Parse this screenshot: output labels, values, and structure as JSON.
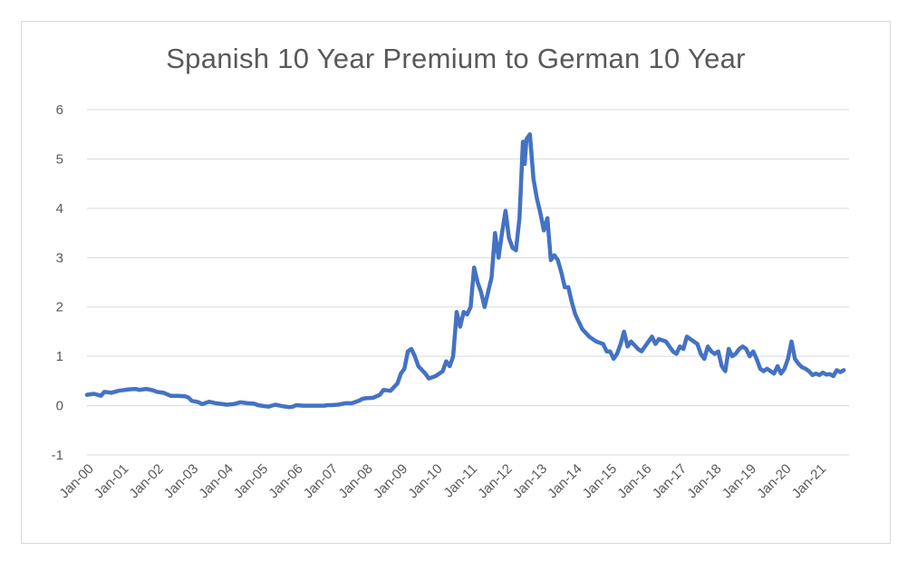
{
  "chart_data": {
    "type": "line",
    "title": "Spanish 10 Year Premium to German 10 Year",
    "xlabel": "",
    "ylabel": "",
    "ylim": [
      -1,
      6
    ],
    "yticks": [
      "-1",
      "0",
      "1",
      "2",
      "3",
      "4",
      "5",
      "6"
    ],
    "xticks": [
      "Jan-00",
      "Jan-01",
      "Jan-02",
      "Jan-03",
      "Jan-04",
      "Jan-05",
      "Jan-06",
      "Jan-07",
      "Jan-08",
      "Jan-09",
      "Jan-10",
      "Jan-11",
      "Jan-12",
      "Jan-13",
      "Jan-14",
      "Jan-15",
      "Jan-16",
      "Jan-17",
      "Jan-18",
      "Jan-19",
      "Jan-20",
      "Jan-21"
    ],
    "grid": true,
    "legend": "none",
    "colors": {
      "line": "#4472c4",
      "grid": "#d9d9d9",
      "text": "#595959"
    },
    "series": [
      {
        "points": [
          [
            2000.0,
            0.22
          ],
          [
            2000.2,
            0.24
          ],
          [
            2000.4,
            0.2
          ],
          [
            2000.5,
            0.28
          ],
          [
            2000.7,
            0.26
          ],
          [
            2000.9,
            0.3
          ],
          [
            2001.0,
            0.31
          ],
          [
            2001.2,
            0.33
          ],
          [
            2001.4,
            0.34
          ],
          [
            2001.5,
            0.32
          ],
          [
            2001.7,
            0.34
          ],
          [
            2001.9,
            0.31
          ],
          [
            2002.0,
            0.28
          ],
          [
            2002.2,
            0.26
          ],
          [
            2002.4,
            0.2
          ],
          [
            2002.6,
            0.2
          ],
          [
            2002.8,
            0.19
          ],
          [
            2002.9,
            0.17
          ],
          [
            2003.0,
            0.1
          ],
          [
            2003.2,
            0.07
          ],
          [
            2003.3,
            0.03
          ],
          [
            2003.5,
            0.08
          ],
          [
            2003.7,
            0.05
          ],
          [
            2003.9,
            0.03
          ],
          [
            2004.0,
            0.02
          ],
          [
            2004.2,
            0.03
          ],
          [
            2004.4,
            0.07
          ],
          [
            2004.6,
            0.05
          ],
          [
            2004.8,
            0.04
          ],
          [
            2004.9,
            0.01
          ],
          [
            2005.0,
            0.0
          ],
          [
            2005.2,
            -0.02
          ],
          [
            2005.4,
            0.02
          ],
          [
            2005.6,
            -0.01
          ],
          [
            2005.8,
            -0.03
          ],
          [
            2005.9,
            -0.02
          ],
          [
            2006.0,
            0.01
          ],
          [
            2006.2,
            0.0
          ],
          [
            2006.4,
            0.0
          ],
          [
            2006.6,
            0.0
          ],
          [
            2006.8,
            0.0
          ],
          [
            2006.9,
            0.01
          ],
          [
            2007.0,
            0.01
          ],
          [
            2007.2,
            0.02
          ],
          [
            2007.4,
            0.05
          ],
          [
            2007.6,
            0.05
          ],
          [
            2007.8,
            0.1
          ],
          [
            2007.9,
            0.14
          ],
          [
            2008.0,
            0.15
          ],
          [
            2008.2,
            0.16
          ],
          [
            2008.4,
            0.22
          ],
          [
            2008.5,
            0.32
          ],
          [
            2008.7,
            0.3
          ],
          [
            2008.9,
            0.45
          ],
          [
            2009.0,
            0.65
          ],
          [
            2009.1,
            0.75
          ],
          [
            2009.2,
            1.1
          ],
          [
            2009.3,
            1.15
          ],
          [
            2009.4,
            1.0
          ],
          [
            2009.5,
            0.8
          ],
          [
            2009.7,
            0.65
          ],
          [
            2009.8,
            0.55
          ],
          [
            2010.0,
            0.6
          ],
          [
            2010.2,
            0.7
          ],
          [
            2010.3,
            0.9
          ],
          [
            2010.4,
            0.8
          ],
          [
            2010.5,
            1.0
          ],
          [
            2010.6,
            1.9
          ],
          [
            2010.7,
            1.6
          ],
          [
            2010.8,
            1.9
          ],
          [
            2010.9,
            1.85
          ],
          [
            2011.0,
            2.0
          ],
          [
            2011.1,
            2.8
          ],
          [
            2011.2,
            2.5
          ],
          [
            2011.3,
            2.3
          ],
          [
            2011.4,
            2.0
          ],
          [
            2011.5,
            2.3
          ],
          [
            2011.6,
            2.6
          ],
          [
            2011.7,
            3.5
          ],
          [
            2011.8,
            3.0
          ],
          [
            2011.9,
            3.5
          ],
          [
            2012.0,
            3.95
          ],
          [
            2012.1,
            3.4
          ],
          [
            2012.2,
            3.2
          ],
          [
            2012.3,
            3.15
          ],
          [
            2012.4,
            3.8
          ],
          [
            2012.5,
            5.35
          ],
          [
            2012.55,
            4.9
          ],
          [
            2012.6,
            5.4
          ],
          [
            2012.7,
            5.5
          ],
          [
            2012.8,
            4.6
          ],
          [
            2012.9,
            4.2
          ],
          [
            2013.0,
            3.9
          ],
          [
            2013.1,
            3.55
          ],
          [
            2013.2,
            3.8
          ],
          [
            2013.3,
            2.95
          ],
          [
            2013.4,
            3.05
          ],
          [
            2013.5,
            2.95
          ],
          [
            2013.6,
            2.7
          ],
          [
            2013.7,
            2.4
          ],
          [
            2013.8,
            2.4
          ],
          [
            2013.9,
            2.1
          ],
          [
            2014.0,
            1.85
          ],
          [
            2014.2,
            1.55
          ],
          [
            2014.4,
            1.4
          ],
          [
            2014.6,
            1.3
          ],
          [
            2014.8,
            1.25
          ],
          [
            2014.9,
            1.1
          ],
          [
            2015.0,
            1.1
          ],
          [
            2015.1,
            0.95
          ],
          [
            2015.2,
            1.05
          ],
          [
            2015.3,
            1.25
          ],
          [
            2015.4,
            1.5
          ],
          [
            2015.5,
            1.2
          ],
          [
            2015.6,
            1.3
          ],
          [
            2015.8,
            1.15
          ],
          [
            2015.9,
            1.1
          ],
          [
            2016.0,
            1.2
          ],
          [
            2016.2,
            1.4
          ],
          [
            2016.3,
            1.25
          ],
          [
            2016.4,
            1.35
          ],
          [
            2016.6,
            1.3
          ],
          [
            2016.8,
            1.1
          ],
          [
            2016.9,
            1.05
          ],
          [
            2017.0,
            1.2
          ],
          [
            2017.1,
            1.15
          ],
          [
            2017.2,
            1.4
          ],
          [
            2017.3,
            1.35
          ],
          [
            2017.5,
            1.25
          ],
          [
            2017.6,
            1.05
          ],
          [
            2017.7,
            0.95
          ],
          [
            2017.8,
            1.2
          ],
          [
            2017.9,
            1.1
          ],
          [
            2018.0,
            1.05
          ],
          [
            2018.1,
            1.1
          ],
          [
            2018.2,
            0.8
          ],
          [
            2018.3,
            0.7
          ],
          [
            2018.4,
            1.15
          ],
          [
            2018.5,
            1.0
          ],
          [
            2018.6,
            1.05
          ],
          [
            2018.7,
            1.15
          ],
          [
            2018.8,
            1.2
          ],
          [
            2018.9,
            1.15
          ],
          [
            2019.0,
            1.0
          ],
          [
            2019.1,
            1.1
          ],
          [
            2019.2,
            0.95
          ],
          [
            2019.3,
            0.75
          ],
          [
            2019.4,
            0.7
          ],
          [
            2019.5,
            0.75
          ],
          [
            2019.6,
            0.7
          ],
          [
            2019.7,
            0.65
          ],
          [
            2019.8,
            0.8
          ],
          [
            2019.9,
            0.65
          ],
          [
            2020.0,
            0.75
          ],
          [
            2020.1,
            0.95
          ],
          [
            2020.2,
            1.3
          ],
          [
            2020.3,
            0.95
          ],
          [
            2020.4,
            0.85
          ],
          [
            2020.5,
            0.78
          ],
          [
            2020.6,
            0.75
          ],
          [
            2020.7,
            0.7
          ],
          [
            2020.8,
            0.62
          ],
          [
            2020.9,
            0.65
          ],
          [
            2021.0,
            0.62
          ],
          [
            2021.1,
            0.67
          ],
          [
            2021.2,
            0.63
          ],
          [
            2021.3,
            0.64
          ],
          [
            2021.4,
            0.6
          ],
          [
            2021.5,
            0.72
          ],
          [
            2021.6,
            0.68
          ],
          [
            2021.7,
            0.72
          ]
        ]
      }
    ]
  }
}
